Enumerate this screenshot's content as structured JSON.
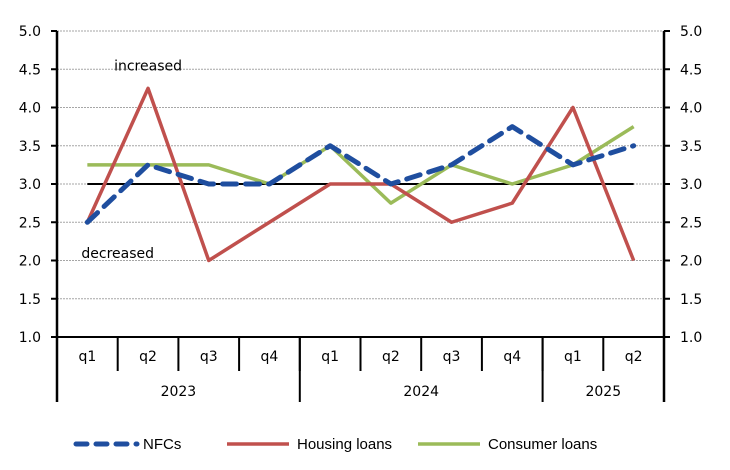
{
  "chart_data": {
    "type": "line",
    "title": "",
    "xlabel": "",
    "ylabel": "",
    "ylim": [
      1.0,
      5.0
    ],
    "y_ticks": [
      "1.0",
      "1.5",
      "2.0",
      "2.5",
      "3.0",
      "3.5",
      "4.0",
      "4.5",
      "5.0"
    ],
    "y_tick_values": [
      1.0,
      1.5,
      2.0,
      2.5,
      3.0,
      3.5,
      4.0,
      4.5,
      5.0
    ],
    "secondary_axis_mirrors_primary": true,
    "grid": true,
    "reference_line": 3.0,
    "categories": [
      "q1",
      "q2",
      "q3",
      "q4",
      "q1",
      "q2",
      "q3",
      "q4",
      "q1",
      "q2"
    ],
    "groups": [
      {
        "label": "2023",
        "count": 4
      },
      {
        "label": "2024",
        "count": 4
      },
      {
        "label": "2025",
        "count": 2
      }
    ],
    "annotations": [
      {
        "text": "increased",
        "x_index": 1,
        "y": 4.55
      },
      {
        "text": "decreased",
        "x_index": 0.5,
        "y": 2.1
      }
    ],
    "series": [
      {
        "name": "NFCs",
        "color": "#1f4e9f",
        "style": "dashed",
        "values": [
          2.5,
          3.25,
          3.0,
          3.0,
          3.5,
          3.0,
          3.25,
          3.75,
          3.25,
          3.5
        ]
      },
      {
        "name": "Housing loans",
        "color": "#c0504d",
        "style": "solid",
        "values": [
          2.5,
          4.25,
          2.0,
          2.5,
          3.0,
          3.0,
          2.5,
          2.75,
          4.0,
          2.0
        ]
      },
      {
        "name": "Consumer loans",
        "color": "#9bbb59",
        "style": "solid",
        "values": [
          3.25,
          3.25,
          3.25,
          3.0,
          3.5,
          2.75,
          3.25,
          3.0,
          3.25,
          3.75
        ]
      }
    ],
    "legend_position": "bottom"
  }
}
